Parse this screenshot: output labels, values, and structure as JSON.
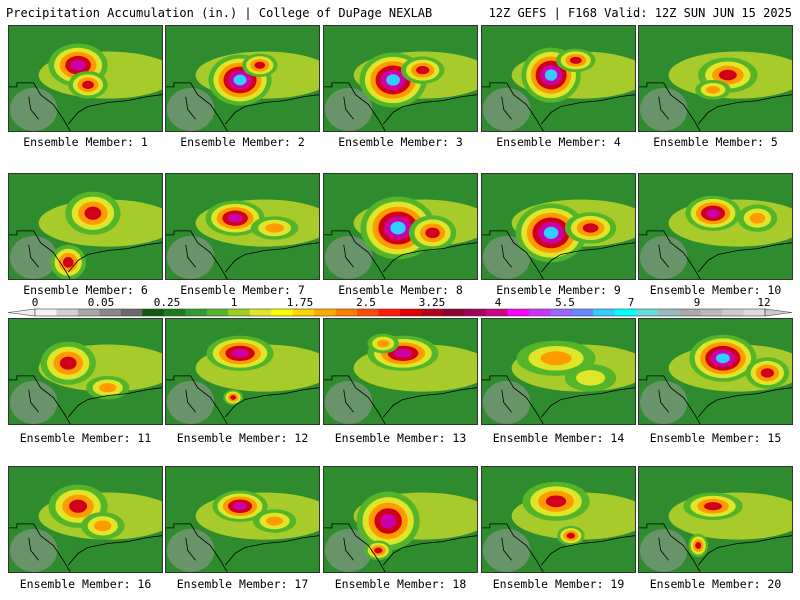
{
  "header": {
    "title_left": "Precipitation Accumulation (in.) | College of DuPage NEXLAB",
    "title_right": "12Z GEFS | F168 Valid: 12Z SUN JUN 15 2025"
  },
  "colorbar": {
    "tick_labels": [
      "0",
      "0.05",
      "0.25",
      "1",
      "1.75",
      "2.5",
      "3.25",
      "4",
      "5.5",
      "7",
      "9",
      "12"
    ],
    "colors": [
      "#f2f2f2",
      "#d0d0d0",
      "#a8a8a8",
      "#888888",
      "#6a6a6a",
      "#0f5a0f",
      "#1f7a1f",
      "#2f9a2f",
      "#55b52a",
      "#9ccf23",
      "#dfe62a",
      "#ffff00",
      "#ffd400",
      "#ffaa00",
      "#ff7f00",
      "#ff4d00",
      "#ff1a00",
      "#e00000",
      "#b3001a",
      "#8c0033",
      "#a0005a",
      "#cc0080",
      "#ff00ff",
      "#cc33ff",
      "#9966ff",
      "#6688ff",
      "#33ccff",
      "#00ffff",
      "#66dddd",
      "#99bbbb",
      "#aaaaaa",
      "#bbbbbb",
      "#cccccc",
      "#dddddd"
    ]
  },
  "panels": [
    {
      "label": "Ensemble Member: 1"
    },
    {
      "label": "Ensemble Member: 2"
    },
    {
      "label": "Ensemble Member: 3"
    },
    {
      "label": "Ensemble Member: 4"
    },
    {
      "label": "Ensemble Member: 5"
    },
    {
      "label": "Ensemble Member: 6"
    },
    {
      "label": "Ensemble Member: 7"
    },
    {
      "label": "Ensemble Member: 8"
    },
    {
      "label": "Ensemble Member: 9"
    },
    {
      "label": "Ensemble Member: 10"
    },
    {
      "label": "Ensemble Member: 11"
    },
    {
      "label": "Ensemble Member: 12"
    },
    {
      "label": "Ensemble Member: 13"
    },
    {
      "label": "Ensemble Member: 14"
    },
    {
      "label": "Ensemble Member: 15"
    },
    {
      "label": "Ensemble Member: 16"
    },
    {
      "label": "Ensemble Member: 17"
    },
    {
      "label": "Ensemble Member: 18"
    },
    {
      "label": "Ensemble Member: 19"
    },
    {
      "label": "Ensemble Member: 20"
    }
  ]
}
